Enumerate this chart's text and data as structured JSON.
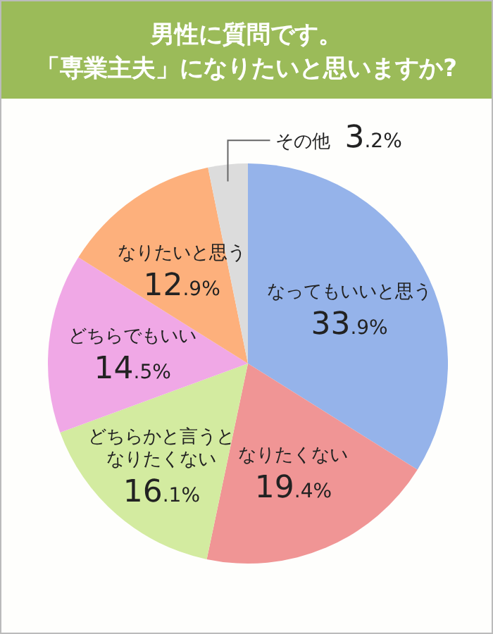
{
  "chart_data": {
    "type": "pie",
    "title": "男性に質問です。「専業主夫」になりたいと思いますか?",
    "categories": [
      "なってもいいと思う",
      "なりたくない",
      "どちらかと言うとなりたくない",
      "どちらでもいい",
      "なりたいと思う",
      "その他"
    ],
    "values": [
      33.9,
      19.4,
      16.1,
      14.5,
      12.9,
      3.2
    ],
    "colors": [
      "#95b3ea",
      "#f09595",
      "#d3eba0",
      "#f0a8e6",
      "#fdb07c",
      "#dcdcdc"
    ],
    "value_labels": [
      "33.9%",
      "19.4%",
      "16.1%",
      "14.5%",
      "12.9%",
      "3.2%"
    ]
  }
}
